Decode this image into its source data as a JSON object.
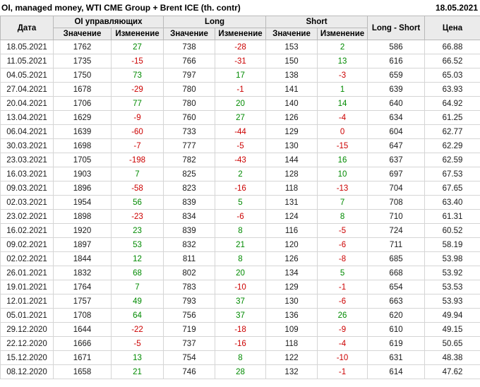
{
  "title": "OI, managed money, WTI CME Group + Brent ICE (th. contr)",
  "report_date": "18.05.2021",
  "colors": {
    "positive": "#008a00",
    "negative": "#cc0000",
    "header_bg": "#ebebeb"
  },
  "table": {
    "headers": {
      "date": "Дата",
      "oi_group": "OI управляющих",
      "long_group": "Long",
      "short_group": "Short",
      "long_short": "Long - Short",
      "price": "Цена",
      "value": "Значение",
      "change": "Изменение"
    },
    "rows": [
      {
        "date": "18.05.2021",
        "oi": 1762,
        "oi_chg": 27,
        "long": 738,
        "long_chg": -28,
        "short": 153,
        "short_chg": 2,
        "long_short": 586,
        "price": "66.88"
      },
      {
        "date": "11.05.2021",
        "oi": 1735,
        "oi_chg": -15,
        "long": 766,
        "long_chg": -31,
        "short": 150,
        "short_chg": 13,
        "long_short": 616,
        "price": "66.52"
      },
      {
        "date": "04.05.2021",
        "oi": 1750,
        "oi_chg": 73,
        "long": 797,
        "long_chg": 17,
        "short": 138,
        "short_chg": -3,
        "long_short": 659,
        "price": "65.03"
      },
      {
        "date": "27.04.2021",
        "oi": 1678,
        "oi_chg": -29,
        "long": 780,
        "long_chg": -1,
        "short": 141,
        "short_chg": 1,
        "long_short": 639,
        "price": "63.93"
      },
      {
        "date": "20.04.2021",
        "oi": 1706,
        "oi_chg": 77,
        "long": 780,
        "long_chg": 20,
        "short": 140,
        "short_chg": 14,
        "long_short": 640,
        "price": "64.92"
      },
      {
        "date": "13.04.2021",
        "oi": 1629,
        "oi_chg": -9,
        "long": 760,
        "long_chg": 27,
        "short": 126,
        "short_chg": -4,
        "long_short": 634,
        "price": "61.25"
      },
      {
        "date": "06.04.2021",
        "oi": 1639,
        "oi_chg": -60,
        "long": 733,
        "long_chg": -44,
        "short": 129,
        "short_chg": 0,
        "long_short": 604,
        "price": "62.77"
      },
      {
        "date": "30.03.2021",
        "oi": 1698,
        "oi_chg": -7,
        "long": 777,
        "long_chg": -5,
        "short": 130,
        "short_chg": -15,
        "long_short": 647,
        "price": "62.29"
      },
      {
        "date": "23.03.2021",
        "oi": 1705,
        "oi_chg": -198,
        "long": 782,
        "long_chg": -43,
        "short": 144,
        "short_chg": 16,
        "long_short": 637,
        "price": "62.59"
      },
      {
        "date": "16.03.2021",
        "oi": 1903,
        "oi_chg": 7,
        "long": 825,
        "long_chg": 2,
        "short": 128,
        "short_chg": 10,
        "long_short": 697,
        "price": "67.53"
      },
      {
        "date": "09.03.2021",
        "oi": 1896,
        "oi_chg": -58,
        "long": 823,
        "long_chg": -16,
        "short": 118,
        "short_chg": -13,
        "long_short": 704,
        "price": "67.65"
      },
      {
        "date": "02.03.2021",
        "oi": 1954,
        "oi_chg": 56,
        "long": 839,
        "long_chg": 5,
        "short": 131,
        "short_chg": 7,
        "long_short": 708,
        "price": "63.40"
      },
      {
        "date": "23.02.2021",
        "oi": 1898,
        "oi_chg": -23,
        "long": 834,
        "long_chg": -6,
        "short": 124,
        "short_chg": 8,
        "long_short": 710,
        "price": "61.31"
      },
      {
        "date": "16.02.2021",
        "oi": 1920,
        "oi_chg": 23,
        "long": 839,
        "long_chg": 8,
        "short": 116,
        "short_chg": -5,
        "long_short": 724,
        "price": "60.52"
      },
      {
        "date": "09.02.2021",
        "oi": 1897,
        "oi_chg": 53,
        "long": 832,
        "long_chg": 21,
        "short": 120,
        "short_chg": -6,
        "long_short": 711,
        "price": "58.19"
      },
      {
        "date": "02.02.2021",
        "oi": 1844,
        "oi_chg": 12,
        "long": 811,
        "long_chg": 8,
        "short": 126,
        "short_chg": -8,
        "long_short": 685,
        "price": "53.98"
      },
      {
        "date": "26.01.2021",
        "oi": 1832,
        "oi_chg": 68,
        "long": 802,
        "long_chg": 20,
        "short": 134,
        "short_chg": 5,
        "long_short": 668,
        "price": "53.92"
      },
      {
        "date": "19.01.2021",
        "oi": 1764,
        "oi_chg": 7,
        "long": 783,
        "long_chg": -10,
        "short": 129,
        "short_chg": -1,
        "long_short": 654,
        "price": "53.53"
      },
      {
        "date": "12.01.2021",
        "oi": 1757,
        "oi_chg": 49,
        "long": 793,
        "long_chg": 37,
        "short": 130,
        "short_chg": -6,
        "long_short": 663,
        "price": "53.93"
      },
      {
        "date": "05.01.2021",
        "oi": 1708,
        "oi_chg": 64,
        "long": 756,
        "long_chg": 37,
        "short": 136,
        "short_chg": 26,
        "long_short": 620,
        "price": "49.94"
      },
      {
        "date": "29.12.2020",
        "oi": 1644,
        "oi_chg": -22,
        "long": 719,
        "long_chg": -18,
        "short": 109,
        "short_chg": -9,
        "long_short": 610,
        "price": "49.15"
      },
      {
        "date": "22.12.2020",
        "oi": 1666,
        "oi_chg": -5,
        "long": 737,
        "long_chg": -16,
        "short": 118,
        "short_chg": -4,
        "long_short": 619,
        "price": "50.65"
      },
      {
        "date": "15.12.2020",
        "oi": 1671,
        "oi_chg": 13,
        "long": 754,
        "long_chg": 8,
        "short": 122,
        "short_chg": -10,
        "long_short": 631,
        "price": "48.38"
      },
      {
        "date": "08.12.2020",
        "oi": 1658,
        "oi_chg": 21,
        "long": 746,
        "long_chg": 28,
        "short": 132,
        "short_chg": -1,
        "long_short": 614,
        "price": "47.62"
      }
    ]
  }
}
